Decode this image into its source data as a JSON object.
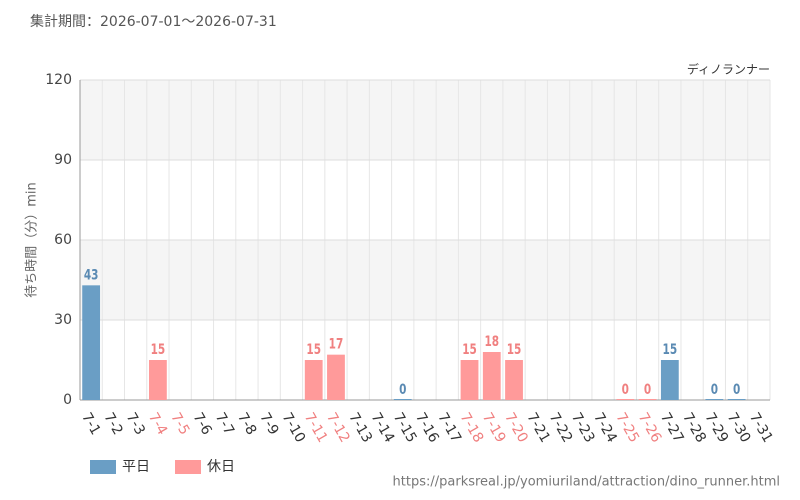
{
  "chart_data": {
    "type": "bar",
    "title": "集計期間：2026-07-01〜2026-07-31",
    "annotation": "ディノランナー",
    "y_label": "待ち時間（分）min",
    "source": "https://parksreal.jp/yomiuriland/attraction/dino_runner.html",
    "categories": [
      "7-1",
      "7-2",
      "7-3",
      "7-4",
      "7-5",
      "7-6",
      "7-7",
      "7-8",
      "7-9",
      "7-10",
      "7-11",
      "7-12",
      "7-13",
      "7-14",
      "7-15",
      "7-16",
      "7-17",
      "7-18",
      "7-19",
      "7-20",
      "7-21",
      "7-22",
      "7-23",
      "7-24",
      "7-25",
      "7-26",
      "7-27",
      "7-28",
      "7-29",
      "7-30",
      "7-31"
    ],
    "category_colors": [
      "#333",
      "#333",
      "#333",
      "#f08080",
      "#f08080",
      "#333",
      "#333",
      "#333",
      "#333",
      "#333",
      "#f08080",
      "#f08080",
      "#333",
      "#333",
      "#333",
      "#333",
      "#333",
      "#f08080",
      "#f08080",
      "#f08080",
      "#333",
      "#333",
      "#333",
      "#333",
      "#f08080",
      "#f08080",
      "#333",
      "#333",
      "#333",
      "#333",
      "#333"
    ],
    "series": [
      {
        "name": "平日",
        "color": "#6a9ec5",
        "label_color": "#5a8ab3",
        "values": [
          43,
          null,
          null,
          null,
          null,
          null,
          null,
          null,
          null,
          null,
          null,
          null,
          null,
          null,
          0,
          null,
          null,
          null,
          null,
          null,
          null,
          null,
          null,
          null,
          null,
          null,
          15,
          null,
          0,
          0,
          null
        ]
      },
      {
        "name": "休日",
        "color": "#ff9a9a",
        "label_color": "#f08080",
        "values": [
          null,
          null,
          null,
          15,
          null,
          null,
          null,
          null,
          null,
          null,
          15,
          17,
          null,
          null,
          null,
          null,
          null,
          15,
          18,
          15,
          null,
          null,
          null,
          null,
          0,
          0,
          null,
          null,
          null,
          null,
          null
        ]
      }
    ],
    "ylim": [
      0,
      120
    ],
    "yticks": [
      0,
      30,
      60,
      90,
      120
    ],
    "grid": true
  }
}
